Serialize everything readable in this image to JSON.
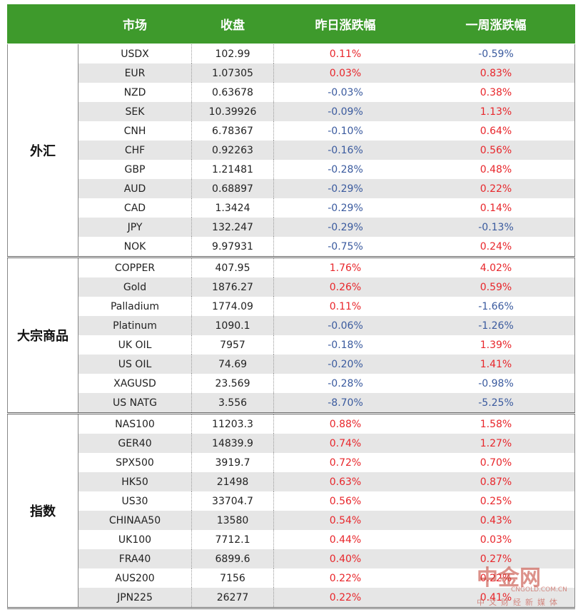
{
  "header": [
    "市场",
    "收盘",
    "昨日涨跌幅",
    "一周涨跌幅"
  ],
  "groups": [
    {
      "name": "外汇",
      "rows": [
        [
          "USDX",
          "102.99",
          "0.11%",
          "-0.59%"
        ],
        [
          "EUR",
          "1.07305",
          "0.03%",
          "0.83%"
        ],
        [
          "NZD",
          "0.63678",
          "-0.03%",
          "0.38%"
        ],
        [
          "SEK",
          "10.39926",
          "-0.09%",
          "1.13%"
        ],
        [
          "CNH",
          "6.78367",
          "-0.10%",
          "0.64%"
        ],
        [
          "CHF",
          "0.92263",
          "-0.16%",
          "0.56%"
        ],
        [
          "GBP",
          "1.21481",
          "-0.28%",
          "0.48%"
        ],
        [
          "AUD",
          "0.68897",
          "-0.29%",
          "0.22%"
        ],
        [
          "CAD",
          "1.3424",
          "-0.29%",
          "0.14%"
        ],
        [
          "JPY",
          "132.247",
          "-0.29%",
          "-0.13%"
        ],
        [
          "NOK",
          "9.97931",
          "-0.75%",
          "0.24%"
        ]
      ]
    },
    {
      "name": "大宗商品",
      "rows": [
        [
          "COPPER",
          "407.95",
          "1.76%",
          "4.02%"
        ],
        [
          "Gold",
          "1876.27",
          "0.26%",
          "0.59%"
        ],
        [
          "Palladium",
          "1774.09",
          "0.11%",
          "-1.66%"
        ],
        [
          "Platinum",
          "1090.1",
          "-0.06%",
          "-1.26%"
        ],
        [
          "UK OIL",
          "7957",
          "-0.18%",
          "1.39%"
        ],
        [
          "US OIL",
          "74.69",
          "-0.20%",
          "1.41%"
        ],
        [
          "XAGUSD",
          "23.569",
          "-0.28%",
          "-0.98%"
        ],
        [
          "US NATG",
          "3.556",
          "-8.70%",
          "-5.25%"
        ]
      ]
    },
    {
      "name": "指数",
      "rows": [
        [
          "NAS100",
          "11203.3",
          "0.88%",
          "1.58%"
        ],
        [
          "GER40",
          "14839.9",
          "0.74%",
          "1.27%"
        ],
        [
          "SPX500",
          "3919.7",
          "0.72%",
          "0.70%"
        ],
        [
          "HK50",
          "21498",
          "0.63%",
          "0.87%"
        ],
        [
          "US30",
          "33704.7",
          "0.56%",
          "0.25%"
        ],
        [
          "CHINAA50",
          "13580",
          "0.54%",
          "0.43%"
        ],
        [
          "UK100",
          "7712.1",
          "0.44%",
          "0.03%"
        ],
        [
          "FRA40",
          "6899.6",
          "0.40%",
          "0.27%"
        ],
        [
          "AUS200",
          "7156",
          "0.22%",
          "0.22%"
        ],
        [
          "JPN225",
          "26277",
          "0.22%",
          "0.41%"
        ]
      ]
    }
  ],
  "watermark": {
    "name": "中金网",
    "site": "CNGOLD.COM.CN",
    "slogan": "中文财经新媒体"
  }
}
